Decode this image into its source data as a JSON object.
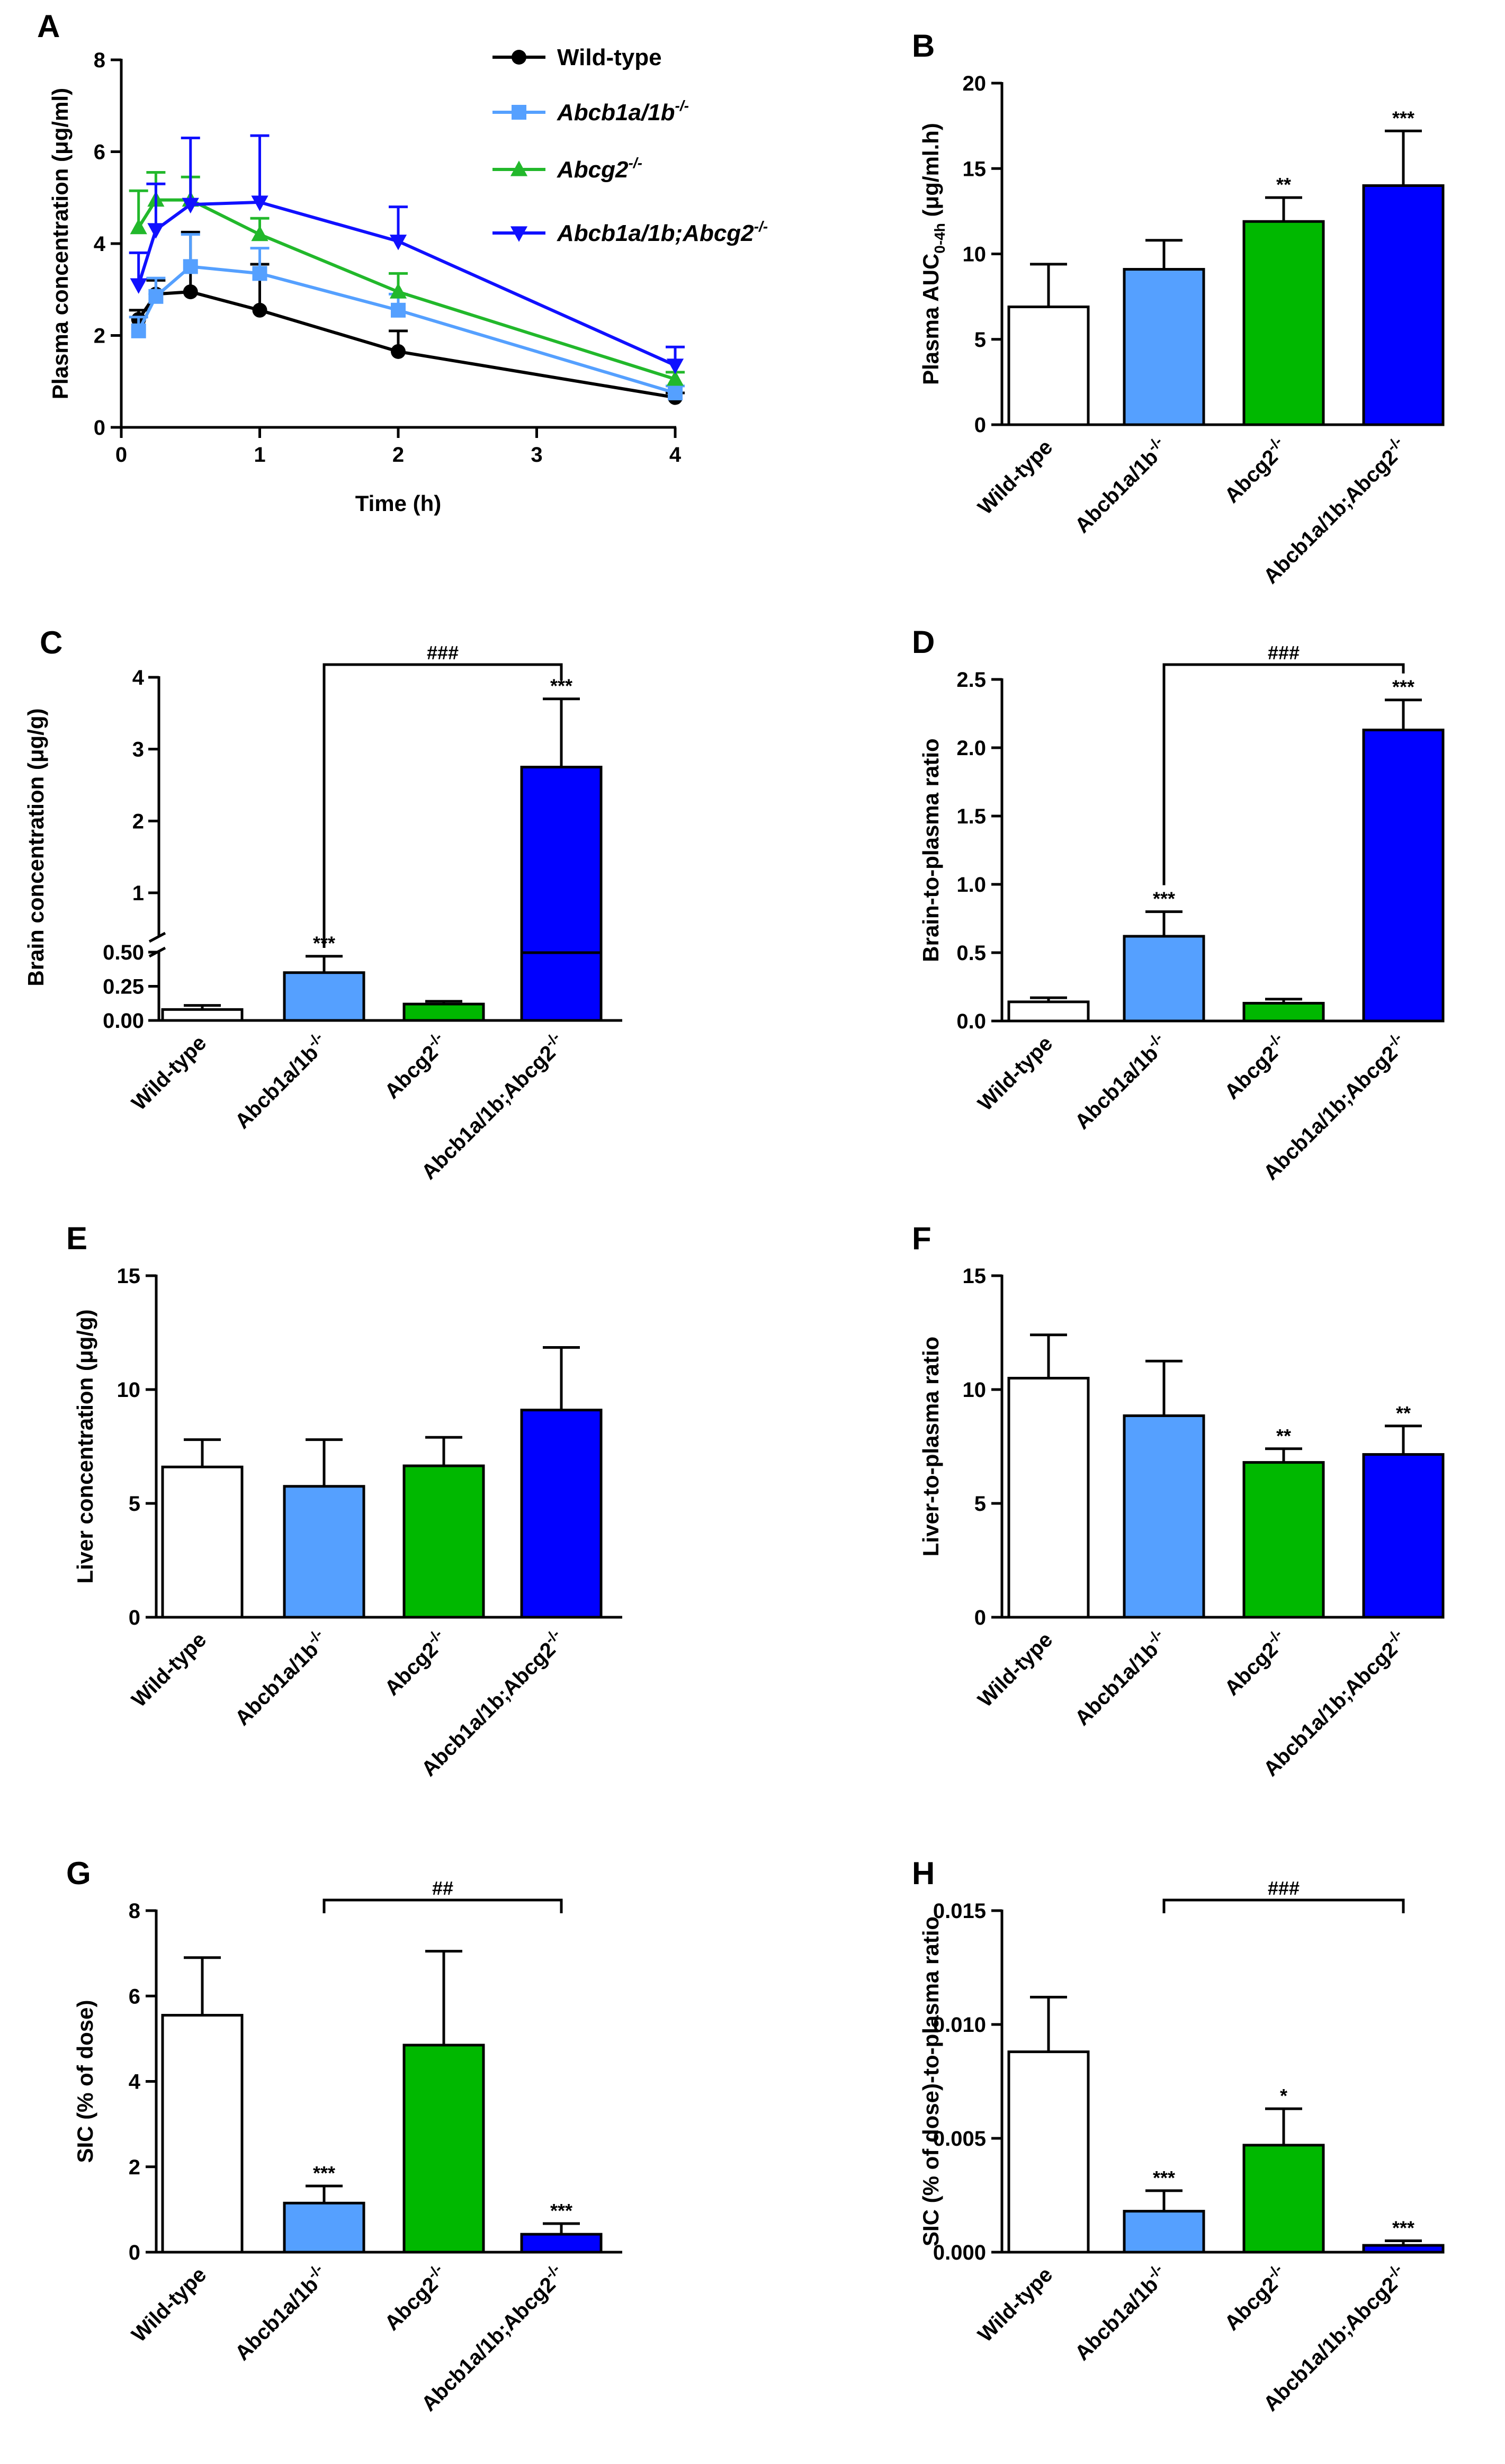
{
  "chart_data": [
    {
      "id": "A",
      "type": "line",
      "panel_label": "A",
      "xlabel": "Time (h)",
      "ylabel": "Plasma concentration (μg/ml)",
      "xlim": [
        0,
        4
      ],
      "ylim": [
        0,
        8
      ],
      "xticks": [
        0,
        1,
        2,
        3,
        4
      ],
      "yticks": [
        0,
        2,
        4,
        6,
        8
      ],
      "x": [
        0.125,
        0.25,
        0.5,
        1,
        2,
        4
      ],
      "series": [
        {
          "name": "Wild-type",
          "genotype": "Wild-type",
          "sup": "",
          "italic": false,
          "color": "#000000",
          "marker": "circle",
          "values": [
            2.35,
            2.9,
            2.95,
            2.55,
            1.65,
            0.65
          ],
          "errors": [
            0.2,
            0.3,
            1.3,
            1.0,
            0.45,
            0.1
          ]
        },
        {
          "name": "Abcb1a/1b-/-",
          "genotype": "Abcb1a/1b",
          "sup": "-/-",
          "italic": true,
          "color": "#55a0ff",
          "marker": "square",
          "values": [
            2.1,
            2.85,
            3.5,
            3.35,
            2.55,
            0.75
          ],
          "errors": [
            0.3,
            0.4,
            0.7,
            0.55,
            0.35,
            0.15
          ]
        },
        {
          "name": "Abcg2-/-",
          "genotype": "Abcg2",
          "sup": "-/-",
          "italic": true,
          "color": "#22b82b",
          "marker": "triangle-up",
          "values": [
            4.35,
            4.95,
            4.95,
            4.2,
            2.95,
            1.05
          ],
          "errors": [
            0.8,
            0.6,
            0.5,
            0.35,
            0.4,
            0.15
          ]
        },
        {
          "name": "Abcb1a/1b;Abcg2-/-",
          "genotype": "Abcb1a/1b;Abcg2",
          "sup": "-/-",
          "italic": true,
          "color": "#1010ff",
          "marker": "triangle-down",
          "values": [
            3.1,
            4.3,
            4.85,
            4.9,
            4.05,
            1.35
          ],
          "errors": [
            0.7,
            1.0,
            1.45,
            1.45,
            0.75,
            0.4
          ]
        }
      ]
    },
    {
      "id": "B",
      "type": "bar",
      "panel_label": "B",
      "ylabel": "Plasma AUC",
      "ylabel_sub": "0-4h",
      "ylabel_end": " (μg/ml.h)",
      "ylim": [
        0,
        20
      ],
      "yticks": [
        0,
        5,
        10,
        15,
        20
      ],
      "values": [
        6.9,
        9.1,
        11.9,
        14.0
      ],
      "errors": [
        2.5,
        1.7,
        1.4,
        3.2
      ],
      "stars": [
        "",
        "",
        "**",
        "***"
      ]
    },
    {
      "id": "C",
      "type": "bar",
      "panel_label": "C",
      "ylabel": "Brain concentration (μg/g)",
      "broken_axis": true,
      "lower_ylim": [
        0,
        0.5
      ],
      "upper_ylim": [
        0.5,
        4
      ],
      "lower_yticks": [
        "0.00",
        "0.25",
        "0.50"
      ],
      "upper_yticks": [
        "1",
        "2",
        "3",
        "4"
      ],
      "values": [
        0.08,
        0.35,
        0.12,
        2.75
      ],
      "errors": [
        0.03,
        0.12,
        0.02,
        0.95
      ],
      "stars": [
        "",
        "***",
        "",
        "***"
      ],
      "bracket": {
        "from": 1,
        "to": 3,
        "label": "###"
      }
    },
    {
      "id": "D",
      "type": "bar",
      "panel_label": "D",
      "ylabel": "Brain-to-plasma ratio",
      "ylim": [
        0,
        2.5
      ],
      "yticks": [
        "0.0",
        "0.5",
        "1.0",
        "1.5",
        "2.0",
        "2.5"
      ],
      "values": [
        0.14,
        0.62,
        0.13,
        2.13
      ],
      "errors": [
        0.03,
        0.18,
        0.03,
        0.22
      ],
      "stars": [
        "",
        "***",
        "",
        "***"
      ],
      "bracket": {
        "from": 1,
        "to": 3,
        "label": "###"
      }
    },
    {
      "id": "E",
      "type": "bar",
      "panel_label": "E",
      "ylabel": "Liver concentration (μg/g)",
      "ylim": [
        0,
        15
      ],
      "yticks": [
        0,
        5,
        10,
        15
      ],
      "values": [
        6.6,
        5.75,
        6.65,
        9.1
      ],
      "errors": [
        1.2,
        2.05,
        1.25,
        2.75
      ],
      "stars": [
        "",
        "",
        "",
        ""
      ]
    },
    {
      "id": "F",
      "type": "bar",
      "panel_label": "F",
      "ylabel": "Liver-to-plasma ratio",
      "ylim": [
        0,
        15
      ],
      "yticks": [
        0,
        5,
        10,
        15
      ],
      "values": [
        10.5,
        8.85,
        6.8,
        7.15
      ],
      "errors": [
        1.9,
        2.4,
        0.6,
        1.25
      ],
      "stars": [
        "",
        "",
        "**",
        "**"
      ]
    },
    {
      "id": "G",
      "type": "bar",
      "panel_label": "G",
      "ylabel": "SIC (% of dose)",
      "ylim": [
        0,
        8
      ],
      "yticks": [
        0,
        2,
        4,
        6,
        8
      ],
      "values": [
        5.55,
        1.15,
        4.85,
        0.42
      ],
      "errors": [
        1.35,
        0.4,
        2.2,
        0.25
      ],
      "stars": [
        "",
        "***",
        "",
        "***"
      ],
      "bracket": {
        "from": 1,
        "to": 3,
        "label": "##"
      }
    },
    {
      "id": "H",
      "type": "bar",
      "panel_label": "H",
      "ylabel": "SIC (% of dose)-to-plasma ratio",
      "ylim": [
        0,
        0.015
      ],
      "yticks": [
        "0.000",
        "0.005",
        "0.010",
        "0.015"
      ],
      "values": [
        0.0088,
        0.0018,
        0.0047,
        0.0003
      ],
      "errors": [
        0.0024,
        0.0009,
        0.0016,
        0.0002
      ],
      "stars": [
        "",
        "***",
        "*",
        "***"
      ],
      "bracket": {
        "from": 1,
        "to": 3,
        "label": "###"
      }
    }
  ],
  "bar_groups": {
    "names": [
      "Wild-type",
      "Abcb1a/1b",
      "Abcg2",
      "Abcb1a/1b;Abcg2"
    ],
    "sups": [
      "",
      "-/-",
      "-/-",
      "-/-"
    ],
    "colors": [
      "#ffffff",
      "#55a0ff",
      "#00b800",
      "#0000ff"
    ]
  }
}
